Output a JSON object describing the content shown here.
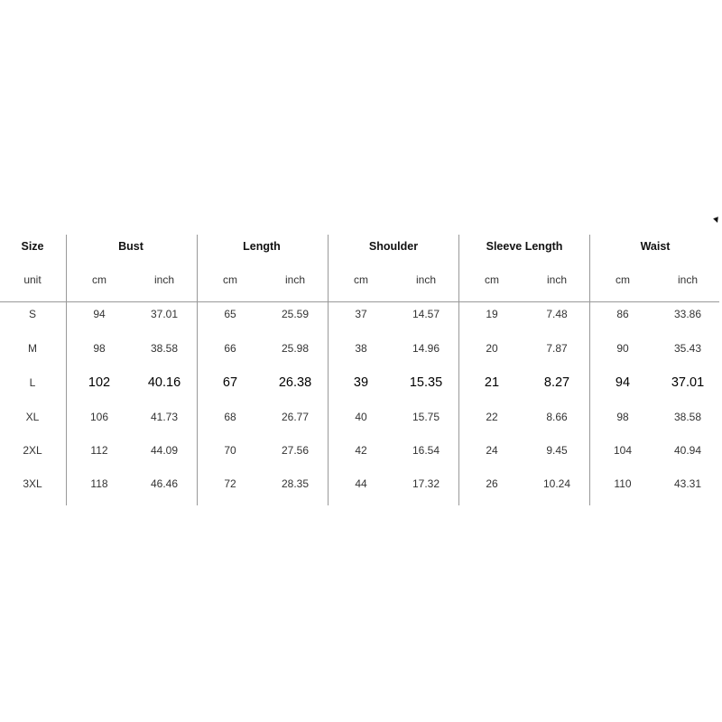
{
  "table": {
    "size_header": "Size",
    "unit_label": "unit",
    "groups": [
      "Bust",
      "Length",
      "Shoulder",
      "Sleeve Length",
      "Waist"
    ],
    "units": [
      "cm",
      "inch"
    ],
    "rows": [
      {
        "size": "S",
        "values": [
          "94",
          "37.01",
          "65",
          "25.59",
          "37",
          "14.57",
          "19",
          "7.48",
          "86",
          "33.86"
        ]
      },
      {
        "size": "M",
        "values": [
          "98",
          "38.58",
          "66",
          "25.98",
          "38",
          "14.96",
          "20",
          "7.87",
          "90",
          "35.43"
        ]
      },
      {
        "size": "L",
        "values": [
          "102",
          "40.16",
          "67",
          "26.38",
          "39",
          "15.35",
          "21",
          "8.27",
          "94",
          "37.01"
        ]
      },
      {
        "size": "XL",
        "values": [
          "106",
          "41.73",
          "68",
          "26.77",
          "40",
          "15.75",
          "22",
          "8.66",
          "98",
          "38.58"
        ]
      },
      {
        "size": "2XL",
        "values": [
          "112",
          "44.09",
          "70",
          "27.56",
          "42",
          "16.54",
          "24",
          "9.45",
          "104",
          "40.94"
        ]
      },
      {
        "size": "3XL",
        "values": [
          "118",
          "46.46",
          "72",
          "28.35",
          "44",
          "17.32",
          "26",
          "10.24",
          "110",
          "43.31"
        ]
      }
    ]
  }
}
